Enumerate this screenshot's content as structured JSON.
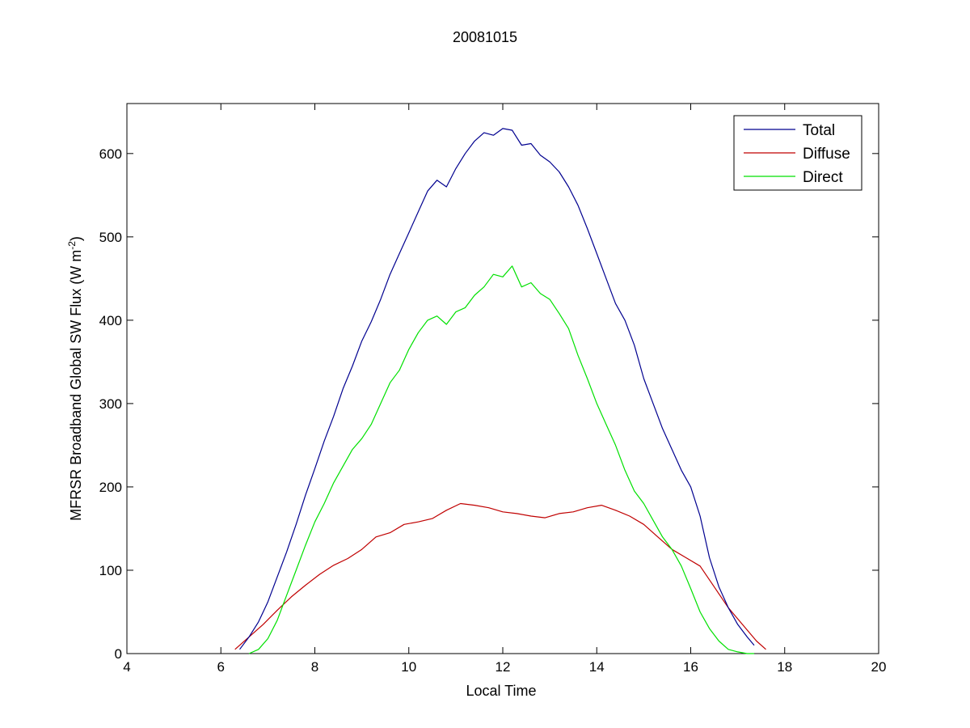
{
  "chart_data": {
    "type": "line",
    "title": "20081015",
    "xlabel": "Local Time",
    "ylabel_main": "MFRSR Broadband Global SW Flux (W m",
    "ylabel_sup": "-2",
    "ylabel_close": ")",
    "xlim": [
      4,
      20
    ],
    "ylim": [
      0,
      660
    ],
    "xticks": [
      4,
      6,
      8,
      10,
      12,
      14,
      16,
      18,
      20
    ],
    "yticks": [
      0,
      100,
      200,
      300,
      400,
      500,
      600
    ],
    "grid": false,
    "legend_position": "top-right",
    "series": [
      {
        "name": "Total",
        "color": "#00008f",
        "x": [
          6.4,
          6.6,
          6.8,
          7.0,
          7.2,
          7.4,
          7.6,
          7.8,
          8.0,
          8.2,
          8.4,
          8.6,
          8.8,
          9.0,
          9.2,
          9.4,
          9.6,
          9.8,
          10.0,
          10.2,
          10.4,
          10.6,
          10.8,
          11.0,
          11.2,
          11.4,
          11.6,
          11.8,
          12.0,
          12.2,
          12.4,
          12.6,
          12.8,
          13.0,
          13.2,
          13.4,
          13.6,
          13.8,
          14.0,
          14.2,
          14.4,
          14.6,
          14.8,
          15.0,
          15.2,
          15.4,
          15.6,
          15.8,
          16.0,
          16.2,
          16.4,
          16.6,
          16.8,
          17.0,
          17.2,
          17.35
        ],
        "y": [
          5,
          20,
          38,
          62,
          92,
          122,
          155,
          190,
          222,
          255,
          285,
          318,
          345,
          375,
          398,
          425,
          455,
          480,
          505,
          530,
          555,
          568,
          560,
          582,
          600,
          615,
          625,
          622,
          630,
          628,
          610,
          612,
          598,
          590,
          578,
          560,
          538,
          510,
          480,
          450,
          420,
          400,
          370,
          330,
          300,
          270,
          245,
          220,
          200,
          165,
          115,
          80,
          55,
          35,
          20,
          10
        ]
      },
      {
        "name": "Diffuse",
        "color": "#c00000",
        "x": [
          6.3,
          6.6,
          6.9,
          7.2,
          7.5,
          7.8,
          8.1,
          8.4,
          8.7,
          9.0,
          9.3,
          9.6,
          9.9,
          10.2,
          10.5,
          10.8,
          11.1,
          11.4,
          11.7,
          12.0,
          12.3,
          12.6,
          12.9,
          13.2,
          13.5,
          13.8,
          14.1,
          14.4,
          14.7,
          15.0,
          15.3,
          15.6,
          15.9,
          16.2,
          16.5,
          16.8,
          17.1,
          17.4,
          17.6
        ],
        "y": [
          5,
          20,
          35,
          52,
          68,
          82,
          95,
          106,
          114,
          125,
          140,
          145,
          155,
          158,
          162,
          172,
          180,
          178,
          175,
          170,
          168,
          165,
          163,
          168,
          170,
          175,
          178,
          172,
          165,
          155,
          140,
          125,
          115,
          105,
          80,
          55,
          35,
          15,
          5
        ]
      },
      {
        "name": "Direct",
        "color": "#00e000",
        "x": [
          6.6,
          6.8,
          7.0,
          7.2,
          7.4,
          7.6,
          7.8,
          8.0,
          8.2,
          8.4,
          8.6,
          8.8,
          9.0,
          9.2,
          9.4,
          9.6,
          9.8,
          10.0,
          10.2,
          10.4,
          10.6,
          10.8,
          11.0,
          11.2,
          11.4,
          11.6,
          11.8,
          12.0,
          12.2,
          12.4,
          12.6,
          12.8,
          13.0,
          13.2,
          13.4,
          13.6,
          13.8,
          14.0,
          14.2,
          14.4,
          14.6,
          14.8,
          15.0,
          15.2,
          15.4,
          15.6,
          15.8,
          16.0,
          16.2,
          16.4,
          16.6,
          16.8,
          17.0,
          17.2,
          17.35
        ],
        "y": [
          0,
          5,
          18,
          40,
          70,
          100,
          130,
          158,
          180,
          205,
          225,
          245,
          258,
          275,
          300,
          325,
          340,
          365,
          385,
          400,
          405,
          395,
          410,
          415,
          430,
          440,
          455,
          452,
          465,
          440,
          445,
          432,
          425,
          408,
          390,
          358,
          330,
          300,
          275,
          250,
          220,
          195,
          180,
          160,
          140,
          125,
          105,
          78,
          50,
          30,
          15,
          5,
          2,
          0,
          0
        ]
      }
    ]
  }
}
